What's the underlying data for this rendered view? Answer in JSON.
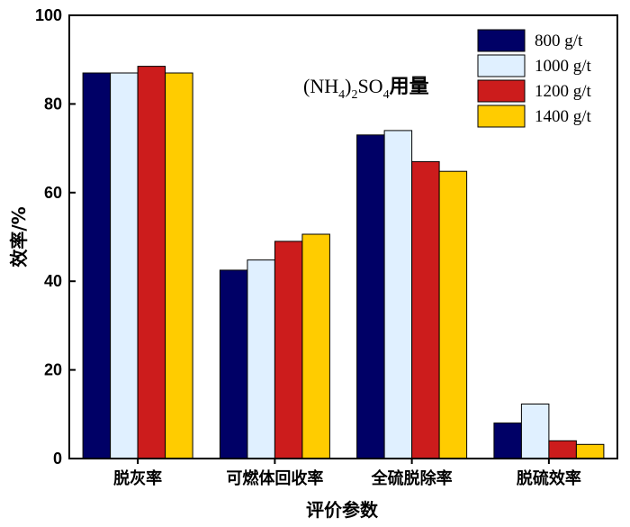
{
  "chart_data": {
    "type": "bar",
    "categories": [
      "脱灰率",
      "可燃体回收率",
      "全硫脱除率",
      "脱硫效率"
    ],
    "series": [
      {
        "name": "800 g/t",
        "color": "#000066",
        "values": [
          87.0,
          42.5,
          73.0,
          8.0
        ]
      },
      {
        "name": "1000 g/t",
        "color": "#e0f0ff",
        "values": [
          87.0,
          44.8,
          74.0,
          12.3
        ]
      },
      {
        "name": "1200 g/t",
        "color": "#cc1c1c",
        "values": [
          88.5,
          49.0,
          67.0,
          4.0
        ]
      },
      {
        "name": "1400 g/t",
        "color": "#ffcc00",
        "values": [
          87.0,
          50.6,
          64.8,
          3.2
        ]
      }
    ],
    "xlabel": "评价参数",
    "ylabel": "效率/%",
    "ylim": [
      0,
      100
    ],
    "yticks": [
      0,
      20,
      40,
      60,
      80,
      100
    ],
    "annotation": {
      "prefix": "(NH",
      "sub1": "4",
      "mid": ")",
      "sub2": "2",
      "so": "SO",
      "sub3": "4",
      "suffix": "用量"
    },
    "legend_position": "top-right",
    "grid": false
  }
}
